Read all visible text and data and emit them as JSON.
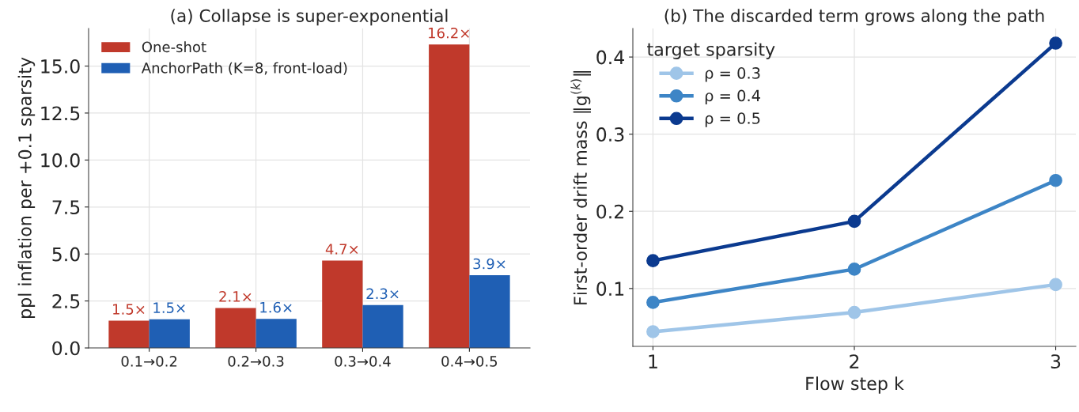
{
  "chart_data": [
    {
      "type": "bar",
      "title": "(a) Collapse is super-exponential",
      "ylabel": "ppl inflation per +0.1 sparsity",
      "categories": [
        "0.1→0.2",
        "0.2→0.3",
        "0.3→0.4",
        "0.4→0.5"
      ],
      "series": [
        {
          "name": "One-shot",
          "color": "#c0392b",
          "values": [
            1.45,
            2.13,
            4.65,
            16.15
          ],
          "value_labels": [
            "1.5×",
            "2.1×",
            "4.7×",
            "16.2×"
          ]
        },
        {
          "name": "AnchorPath (K=8, front-load)",
          "color": "#1f5fb4",
          "values": [
            1.53,
            1.55,
            2.28,
            3.87
          ],
          "value_labels": [
            "1.5×",
            "1.6×",
            "2.3×",
            "3.9×"
          ]
        }
      ],
      "ylim": [
        0,
        17
      ],
      "yticks": [
        {
          "value": 0,
          "label": "0.0"
        },
        2.5,
        {
          "value": 5,
          "label": "5.0"
        },
        7.5,
        {
          "value": 10,
          "label": "10.0"
        },
        12.5,
        {
          "value": 15,
          "label": "15.0"
        }
      ],
      "grid": true,
      "legend": "top left"
    },
    {
      "type": "line",
      "title": "(b) The discarded term grows along the path",
      "xlabel": "Flow step k",
      "ylabel": "First-order drift mass ‖g$^{(k)}$‖",
      "legend_title": "target sparsity",
      "x": [
        1,
        2,
        3
      ],
      "series": [
        {
          "name": "ρ = 0.3",
          "color": "#9fc5e8",
          "values": [
            0.044,
            0.069,
            0.105
          ]
        },
        {
          "name": "ρ = 0.4",
          "color": "#3d85c6",
          "values": [
            0.082,
            0.125,
            0.24
          ]
        },
        {
          "name": "ρ = 0.5",
          "color": "#0b3a8f",
          "values": [
            0.136,
            0.187,
            0.418
          ]
        }
      ],
      "xlim": [
        0.9,
        3.1
      ],
      "xticks": [
        1,
        2,
        3
      ],
      "ylim": [
        0.025,
        0.437
      ],
      "yticks": [
        0.1,
        0.2,
        0.3,
        0.4
      ],
      "grid": true,
      "legend": "top left",
      "marker": "circle",
      "line_style": "solid"
    }
  ]
}
